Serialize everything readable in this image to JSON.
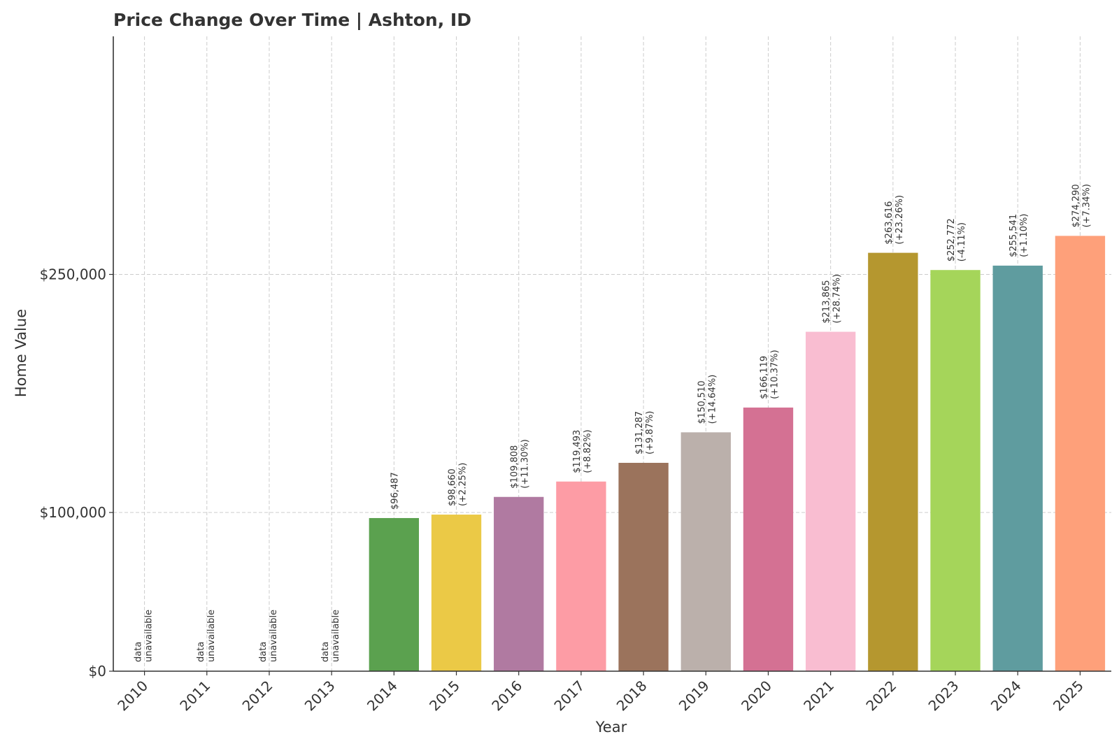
{
  "chart_data": {
    "type": "bar",
    "title": "Price Change Over Time | Ashton, ID",
    "xlabel": "Year",
    "ylabel": "Home Value",
    "ylim": [
      0,
      400000
    ],
    "yticks": [
      {
        "value": 0,
        "label": "$0"
      },
      {
        "value": 100000,
        "label": "$100,000"
      },
      {
        "value": 250000,
        "label": "$250,000"
      }
    ],
    "grid": true,
    "categories": [
      "2010",
      "2011",
      "2012",
      "2013",
      "2014",
      "2015",
      "2016",
      "2017",
      "2018",
      "2019",
      "2020",
      "2021",
      "2022",
      "2023",
      "2024",
      "2025"
    ],
    "values": [
      null,
      null,
      null,
      null,
      96487,
      98660,
      109808,
      119493,
      131287,
      150510,
      166119,
      213865,
      263616,
      252772,
      255541,
      274290
    ],
    "value_labels": [
      "",
      "",
      "",
      "",
      "$96,487",
      "$98,660",
      "$109,808",
      "$119,493",
      "$131,287",
      "$150,510",
      "$166,119",
      "$213,865",
      "$263,616",
      "$252,772",
      "$255,541",
      "$274,290"
    ],
    "change_labels": [
      "",
      "",
      "",
      "",
      "",
      "(+2.25%)",
      "(+11.30%)",
      "(+8.82%)",
      "(+9.87%)",
      "(+14.64%)",
      "(+10.37%)",
      "(+28.74%)",
      "(+23.26%)",
      "(-4.11%)",
      "(+1.10%)",
      "(+7.34%)"
    ],
    "unavailable_label": [
      "data",
      "unavailable"
    ],
    "colors": [
      "#5ba14f",
      "#ebc946",
      "#b07aa1",
      "#fd9ca5",
      "#9b735c",
      "#bbb0ab",
      "#d47193",
      "#f9bdd1",
      "#b5972f",
      "#a5d55a",
      "#5f9c9f",
      "#fea07a"
    ]
  }
}
